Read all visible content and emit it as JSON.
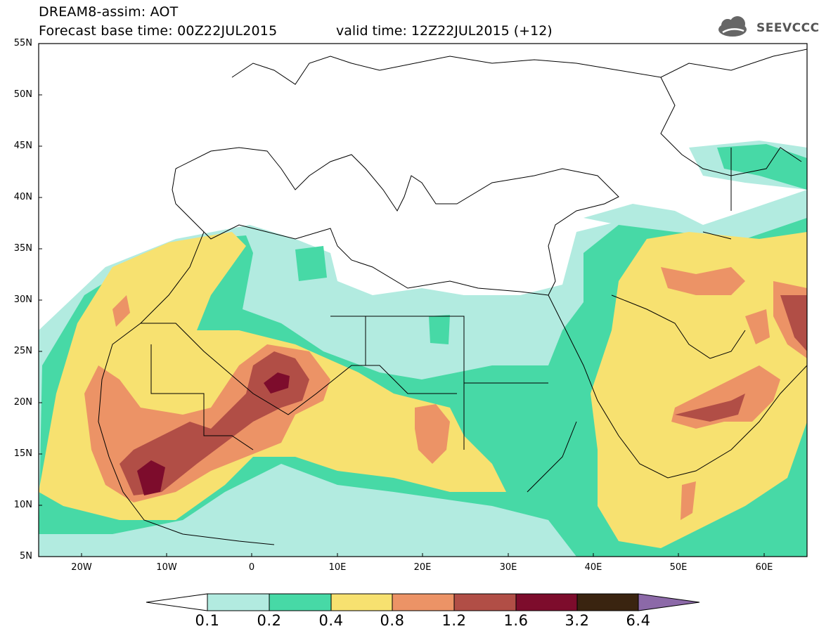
{
  "header": {
    "title": "DREAM8-assim: AOT",
    "base_time": "Forecast base time: 00Z22JUL2015",
    "valid_time": "valid time: 12Z22JUL2015 (+12)"
  },
  "logo": {
    "text": "SEEVCCC",
    "icon": "cloud-logo-icon"
  },
  "map": {
    "lat_labels": [
      "55N",
      "50N",
      "45N",
      "40N",
      "35N",
      "30N",
      "25N",
      "20N",
      "15N",
      "10N",
      "5N"
    ],
    "lon_labels": [
      "20W",
      "10W",
      "0",
      "10E",
      "20E",
      "30E",
      "40E",
      "50E",
      "60E"
    ],
    "lon_range": [
      -25,
      65
    ],
    "lat_range": [
      5,
      55
    ]
  },
  "colorbar": {
    "labels": [
      "0.1",
      "0.2",
      "0.4",
      "0.8",
      "1.2",
      "1.6",
      "3.2",
      "6.4"
    ],
    "colors": [
      "#ffffff",
      "#b2ebe0",
      "#47d9a6",
      "#f7e170",
      "#ec9366",
      "#b14e46",
      "#7d0c2c",
      "#3a2410",
      "#8c69a8"
    ]
  },
  "colors": {
    "aot_0_1": "#b2ebe0",
    "aot_0_2": "#47d9a6",
    "aot_0_4": "#f7e170",
    "aot_0_8": "#ec9366",
    "aot_1_2": "#b14e46",
    "aot_1_6": "#7d0c2c",
    "aot_3_2": "#3a2410"
  }
}
